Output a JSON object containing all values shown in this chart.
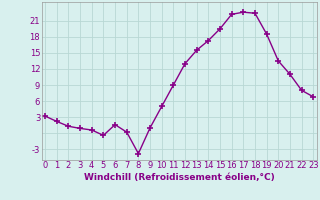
{
  "x": [
    0,
    1,
    2,
    3,
    4,
    5,
    6,
    7,
    8,
    9,
    10,
    11,
    12,
    13,
    14,
    15,
    16,
    17,
    18,
    19,
    20,
    21,
    22,
    23
  ],
  "y": [
    3.2,
    2.2,
    1.3,
    0.9,
    0.6,
    -0.4,
    1.6,
    0.2,
    -3.8,
    1.0,
    5.0,
    9.0,
    13.0,
    15.5,
    17.3,
    19.5,
    22.2,
    22.6,
    22.4,
    18.5,
    13.5,
    11.0,
    8.0,
    6.8
  ],
  "line_color": "#880088",
  "marker": "+",
  "markersize": 4,
  "linewidth": 1.0,
  "markeredgewidth": 1.2,
  "bg_color": "#d8f0ee",
  "grid_color": "#b8d8d4",
  "xlabel": "Windchill (Refroidissement éolien,°C)",
  "xlabel_color": "#880088",
  "xlabel_fontsize": 6.5,
  "tick_color": "#880088",
  "tick_fontsize": 6.0,
  "yticks": [
    -3,
    0,
    3,
    6,
    9,
    12,
    15,
    18,
    21
  ],
  "ytick_labels": [
    "-3",
    "",
    "3",
    "6",
    "9",
    "12",
    "15",
    "18",
    "21"
  ],
  "xticks": [
    0,
    1,
    2,
    3,
    4,
    5,
    6,
    7,
    8,
    9,
    10,
    11,
    12,
    13,
    14,
    15,
    16,
    17,
    18,
    19,
    20,
    21,
    22,
    23
  ],
  "ylim": [
    -5.0,
    24.5
  ],
  "xlim": [
    -0.3,
    23.3
  ]
}
